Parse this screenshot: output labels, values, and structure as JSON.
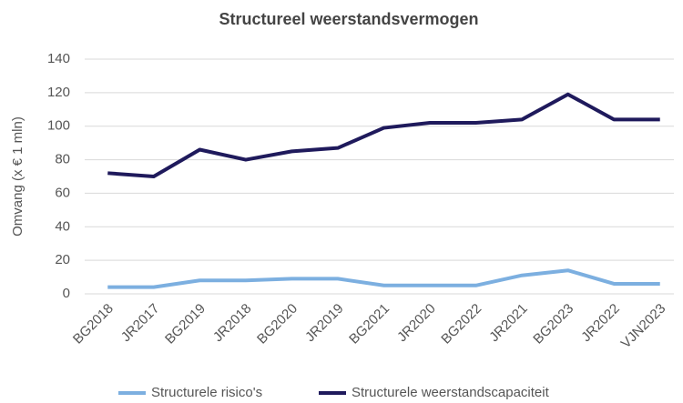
{
  "chart_data": {
    "type": "line",
    "title": "Structureel weerstandsvermogen",
    "ylabel": "Omvang  (x € 1 mln)",
    "categories": [
      "BG2018",
      "JR2017",
      "BG2019",
      "JR2018",
      "BG2020",
      "JR2019",
      "BG2021",
      "JR2020",
      "BG2022",
      "JR2021",
      "BG2023",
      "JR2022",
      "VJN2023"
    ],
    "series": [
      {
        "name": "Structurele risico's",
        "color": "#7cafe0",
        "values": [
          4,
          4,
          8,
          8,
          9,
          9,
          5,
          5,
          5,
          11,
          14,
          6,
          6
        ]
      },
      {
        "name": "Structurele weerstandscapaciteit",
        "color": "#1f1a5c",
        "values": [
          72,
          70,
          86,
          80,
          85,
          87,
          99,
          102,
          102,
          104,
          119,
          104,
          104
        ]
      }
    ],
    "ylim": [
      0,
      140
    ],
    "yticks": [
      0,
      20,
      40,
      60,
      80,
      100,
      120,
      140
    ],
    "grid": true,
    "legend": "bottom"
  }
}
